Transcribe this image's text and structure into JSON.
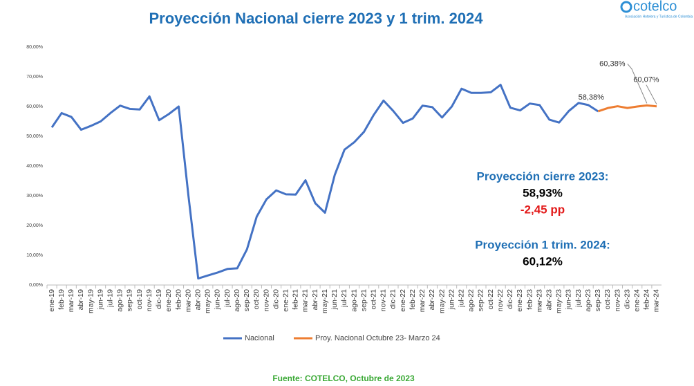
{
  "logo": {
    "name": "cotelco",
    "tagline": "Asociación Hotelera y Turística de Colombia"
  },
  "chart_data": {
    "type": "line",
    "title": "Proyección Nacional cierre 2023 y 1 trim. 2024",
    "categories": [
      "ene-19",
      "feb-19",
      "mar-19",
      "abr-19",
      "may-19",
      "jun-19",
      "jul-19",
      "ago-19",
      "sep-19",
      "oct-19",
      "nov-19",
      "dic-19",
      "ene-20",
      "feb-20",
      "mar-20",
      "abr-20",
      "may-20",
      "jun-20",
      "jul-20",
      "ago-20",
      "sep-20",
      "oct-20",
      "nov-20",
      "dic-20",
      "ene-21",
      "feb-21",
      "mar-21",
      "abr-21",
      "may-21",
      "jun-21",
      "jul-21",
      "ago-21",
      "sep-21",
      "oct-21",
      "nov-21",
      "dic-21",
      "ene-22",
      "feb-22",
      "mar-22",
      "abr-22",
      "may-22",
      "jun-22",
      "jul-22",
      "ago-22",
      "sep-22",
      "oct-22",
      "nov-22",
      "dic-22",
      "ene-23",
      "feb-23",
      "mar-23",
      "abr-23",
      "may-23",
      "jun-23",
      "jul-23",
      "ago-23",
      "sep-23",
      "oct-23",
      "nov-23",
      "dic-23",
      "ene-24",
      "feb-24",
      "mar-24"
    ],
    "series": [
      {
        "name": "Nacional",
        "color": "#4472c4",
        "values": [
          53,
          57.8,
          56.5,
          52.2,
          53.5,
          55,
          57.8,
          60.3,
          59.2,
          59,
          63.4,
          55.4,
          57.5,
          60,
          30,
          2.2,
          3.2,
          4.2,
          5.4,
          5.6,
          12,
          23,
          28.8,
          31.8,
          30.5,
          30.4,
          35.2,
          27.5,
          24.3,
          37,
          45.5,
          48,
          51.5,
          57.2,
          62,
          58.5,
          54.5,
          56,
          60.3,
          59.8,
          56.3,
          60,
          66,
          64.6,
          64.6,
          64.8,
          67.3,
          59.6,
          58.7,
          61,
          60.5,
          55.6,
          54.6,
          58.5,
          61.2,
          60.5,
          58.38,
          null,
          null,
          null,
          null,
          null,
          null
        ]
      },
      {
        "name": "Proy. Nacional Octubre 23- Marzo 24",
        "color": "#ed7d31",
        "values": [
          null,
          null,
          null,
          null,
          null,
          null,
          null,
          null,
          null,
          null,
          null,
          null,
          null,
          null,
          null,
          null,
          null,
          null,
          null,
          null,
          null,
          null,
          null,
          null,
          null,
          null,
          null,
          null,
          null,
          null,
          null,
          null,
          null,
          null,
          null,
          null,
          null,
          null,
          null,
          null,
          null,
          null,
          null,
          null,
          null,
          null,
          null,
          null,
          null,
          null,
          null,
          null,
          null,
          null,
          null,
          null,
          58.38,
          59.5,
          60.1,
          59.5,
          60,
          60.38,
          60.07
        ],
        "value_labels": [
          null,
          null,
          null,
          null,
          null,
          null,
          null,
          null,
          null,
          null,
          null,
          null,
          null,
          null,
          null,
          null,
          null,
          null,
          null,
          null,
          null,
          null,
          null,
          null,
          null,
          null,
          null,
          null,
          null,
          null,
          null,
          null,
          null,
          null,
          null,
          null,
          null,
          null,
          null,
          null,
          null,
          null,
          null,
          null,
          null,
          null,
          null,
          null,
          null,
          null,
          null,
          null,
          null,
          null,
          null,
          null,
          "58,38%",
          null,
          null,
          null,
          null,
          "60,38%",
          "60,07%"
        ]
      }
    ],
    "ylim": [
      0,
      80
    ],
    "yticks": [
      {
        "value": 0,
        "label": "0,00%"
      },
      {
        "value": 10,
        "label": "10,00%"
      },
      {
        "value": 20,
        "label": "20,00%"
      },
      {
        "value": 30,
        "label": "30,00%"
      },
      {
        "value": 40,
        "label": "40,00%"
      },
      {
        "value": 50,
        "label": "50,00%"
      },
      {
        "value": 60,
        "label": "60,00%"
      },
      {
        "value": 70,
        "label": "70,00%"
      },
      {
        "value": 80,
        "label": "80,00%"
      }
    ],
    "grid": false,
    "legend": "bottom",
    "annotations": [
      "Proyección cierre 2023:",
      "58,93%",
      "-2,45 pp",
      "Proyección  1 trim. 2024:",
      "60,12%"
    ],
    "source": "Fuente: COTELCO,  Octubre de 2023"
  }
}
